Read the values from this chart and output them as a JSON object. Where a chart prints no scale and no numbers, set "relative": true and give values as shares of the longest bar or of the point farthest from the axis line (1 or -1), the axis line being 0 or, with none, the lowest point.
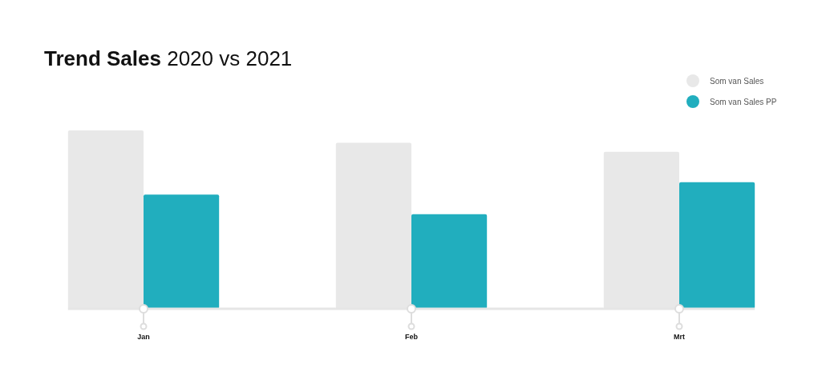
{
  "chart_data": {
    "type": "bar",
    "title": "Trend Sales",
    "subtitle": "2020 vs 2021",
    "relative": true,
    "categories": [
      "Jan",
      "Feb",
      "Mrt"
    ],
    "series": [
      {
        "name": "Som van Sales",
        "color": "#e8e8e8",
        "values": [
          1,
          0.93,
          0.88
        ]
      },
      {
        "name": "Som van Sales PP",
        "color": "#21aebe",
        "values": [
          0.64,
          0.53,
          0.71
        ]
      }
    ],
    "legend": "top right"
  }
}
